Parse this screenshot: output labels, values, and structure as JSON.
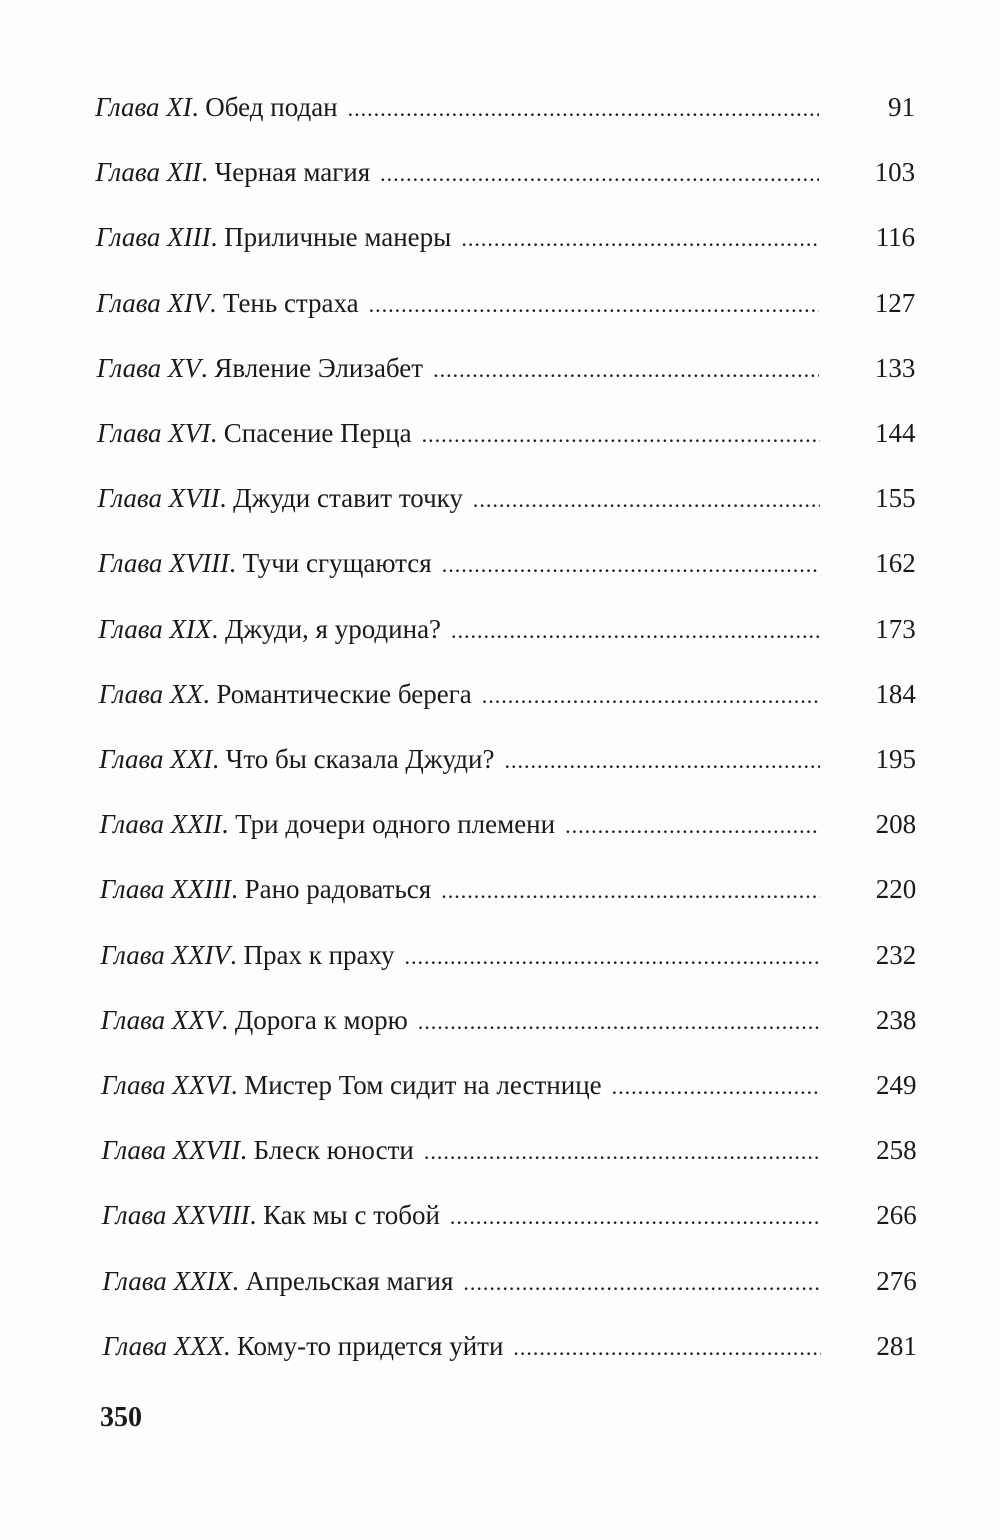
{
  "toc": [
    {
      "chapter": "Глава XI",
      "title": "Обед подан",
      "page": "91"
    },
    {
      "chapter": "Глава XII",
      "title": "Черная магия",
      "page": "103"
    },
    {
      "chapter": "Глава XIII",
      "title": "Приличные манеры",
      "page": "116"
    },
    {
      "chapter": "Глава XIV",
      "title": "Тень страха",
      "page": "127"
    },
    {
      "chapter": "Глава XV",
      "title": "Явление Элизабет",
      "page": "133"
    },
    {
      "chapter": "Глава XVI",
      "title": "Спасение Перца",
      "page": "144"
    },
    {
      "chapter": "Глава XVII",
      "title": "Джуди ставит точку",
      "page": "155"
    },
    {
      "chapter": "Глава XVIII",
      "title": "Тучи сгущаются",
      "page": "162"
    },
    {
      "chapter": "Глава XIX",
      "title": "Джуди, я уродина?",
      "page": "173"
    },
    {
      "chapter": "Глава XX",
      "title": "Романтические берега",
      "page": "184"
    },
    {
      "chapter": "Глава XXI",
      "title": "Что бы сказала Джуди?",
      "page": "195"
    },
    {
      "chapter": "Глава XXII",
      "title": "Три дочери одного племени",
      "page": "208"
    },
    {
      "chapter": "Глава XXIII",
      "title": "Рано радоваться",
      "page": "220"
    },
    {
      "chapter": "Глава XXIV",
      "title": "Прах к праху",
      "page": "232"
    },
    {
      "chapter": "Глава XXV",
      "title": "Дорога к морю",
      "page": "238"
    },
    {
      "chapter": "Глава XXVI",
      "title": "Мистер Том сидит на лестнице",
      "page": "249"
    },
    {
      "chapter": "Глава XXVII",
      "title": "Блеск юности",
      "page": "258"
    },
    {
      "chapter": "Глава XXVIII",
      "title": "Как мы с тобой",
      "page": "266"
    },
    {
      "chapter": "Глава XXIX",
      "title": "Апрельская магия",
      "page": "276"
    },
    {
      "chapter": "Глава XXX",
      "title": "Кому-то придется уйти",
      "page": "281"
    }
  ],
  "folio": "350"
}
